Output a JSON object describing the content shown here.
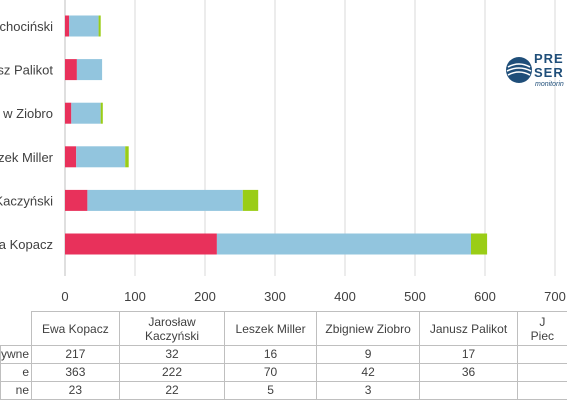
{
  "chart_data": {
    "type": "bar",
    "orientation": "horizontal",
    "stacked": true,
    "categories": [
      "Ewa Kopacz",
      "Jarosław Kaczyński",
      "Leszek Miller",
      "Zbigniew Ziobro",
      "Janusz Palikot",
      "Janusz Piechociński"
    ],
    "category_labels_visible": [
      "a Kopacz",
      "Kaczyński",
      "eszek Miller",
      "w Ziobro",
      "sz Palikot",
      "chociński"
    ],
    "series": [
      {
        "values": [
          217,
          32,
          16,
          9,
          17,
          6
        ],
        "color": "#e8315b"
      },
      {
        "values": [
          363,
          222,
          70,
          42,
          36,
          42
        ],
        "color": "#92c5de"
      },
      {
        "values": [
          23,
          22,
          5,
          3,
          0,
          3
        ],
        "color": "#9acd16"
      }
    ],
    "xlim": [
      0,
      700
    ],
    "xticks": [
      "0",
      "100",
      "200",
      "300",
      "400",
      "500",
      "600",
      "700"
    ],
    "grid": true
  },
  "table": {
    "headers": [
      "Ewa Kopacz",
      "Jarosław\nKaczyński",
      "Leszek Miller",
      "Zbigniew Ziobro",
      "Janusz Palikot",
      "J\nPiec"
    ],
    "row_labels": [
      "ywne",
      "e",
      "ne"
    ],
    "rows": [
      [
        "217",
        "32",
        "16",
        "9",
        "17",
        ""
      ],
      [
        "363",
        "222",
        "70",
        "42",
        "36",
        ""
      ],
      [
        "23",
        "22",
        "5",
        "3",
        "",
        ""
      ]
    ]
  },
  "logo": {
    "line1": "PRE",
    "line2": "SER",
    "tagline": "monitorin"
  }
}
